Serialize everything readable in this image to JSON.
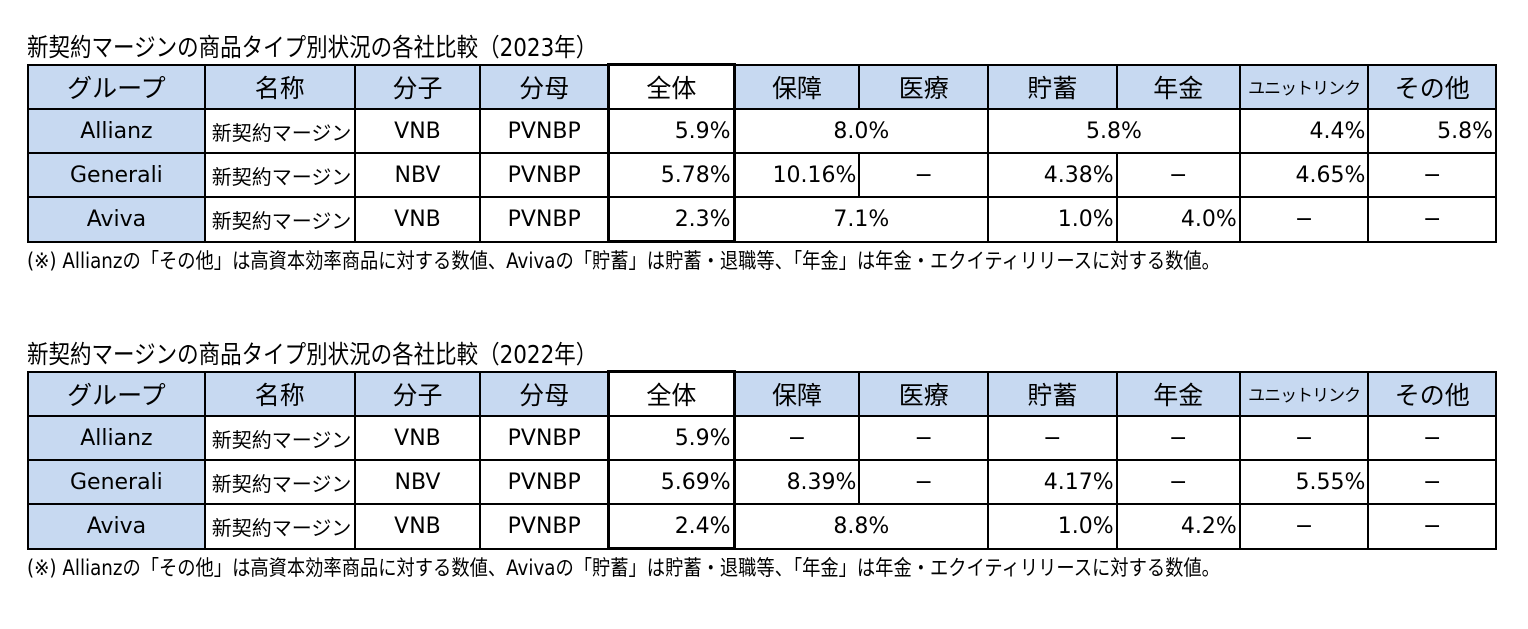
{
  "headers": [
    "グループ",
    "名称",
    "分子",
    "分母",
    "全体",
    "保障",
    "医療",
    "貯蓄",
    "年金",
    "ユニットリンク",
    "その他"
  ],
  "tables": [
    {
      "title": "新契約マージンの商品タイプ別状況の各社比較（2023年）",
      "note": "(※) Allianzの「その他」は高資本効率商品に対する数値、Avivaの「貯蓄」は貯蓄・退職等、「年金」は年金・エクイティリリースに対する数値。",
      "rows": [
        {
          "group": "Allianz",
          "name": "新契約マージン",
          "numerator": "VNB",
          "denominator": "PVNBP",
          "total": "5.9%",
          "protection_medical": "8.0%",
          "savings_pension": "5.8%",
          "unit_linked": "4.4%",
          "other": "5.8%"
        },
        {
          "group": "Generali",
          "name": "新契約マージン",
          "numerator": "NBV",
          "denominator": "PVNBP",
          "total": "5.78%",
          "protection": "10.16%",
          "medical": "−",
          "savings": "4.38%",
          "pension": "−",
          "unit_linked": "4.65%",
          "other": "−"
        },
        {
          "group": "Aviva",
          "name": "新契約マージン",
          "numerator": "VNB",
          "denominator": "PVNBP",
          "total": "2.3%",
          "protection_medical": "7.1%",
          "savings": "1.0%",
          "pension": "4.0%",
          "unit_linked": "−",
          "other": "−"
        }
      ]
    },
    {
      "title": "新契約マージンの商品タイプ別状況の各社比較（2022年）",
      "note": "(※) Allianzの「その他」は高資本効率商品に対する数値、Avivaの「貯蓄」は貯蓄・退職等、「年金」は年金・エクイティリリースに対する数値。",
      "rows": [
        {
          "group": "Allianz",
          "name": "新契約マージン",
          "numerator": "VNB",
          "denominator": "PVNBP",
          "total": "5.9%",
          "protection": "−",
          "medical": "−",
          "savings": "−",
          "pension": "−",
          "unit_linked": "−",
          "other": "−"
        },
        {
          "group": "Generali",
          "name": "新契約マージン",
          "numerator": "NBV",
          "denominator": "PVNBP",
          "total": "5.69%",
          "protection": "8.39%",
          "medical": "−",
          "savings": "4.17%",
          "pension": "−",
          "unit_linked": "5.55%",
          "other": "−"
        },
        {
          "group": "Aviva",
          "name": "新契約マージン",
          "numerator": "VNB",
          "denominator": "PVNBP",
          "total": "2.4%",
          "protection_medical": "8.8%",
          "savings": "1.0%",
          "pension": "4.2%",
          "unit_linked": "−",
          "other": "−"
        }
      ]
    }
  ]
}
